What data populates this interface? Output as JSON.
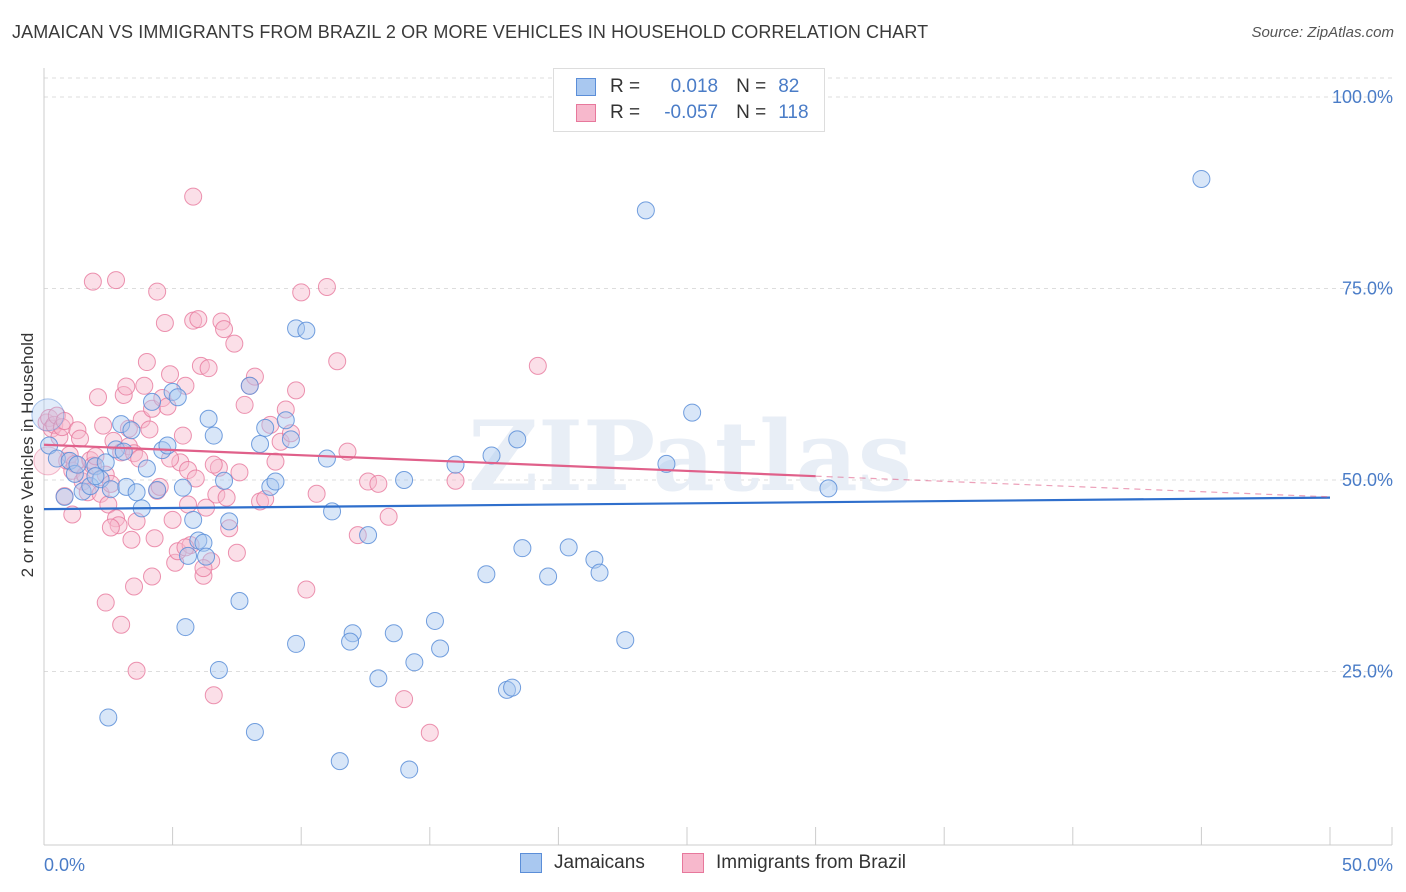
{
  "title": "JAMAICAN VS IMMIGRANTS FROM BRAZIL 2 OR MORE VEHICLES IN HOUSEHOLD CORRELATION CHART",
  "source": "Source: ZipAtlas.com",
  "watermark": "ZIPatlas",
  "legend": {
    "rows": [
      {
        "r_label": "R =",
        "r_value": "0.018",
        "n_label": "N =",
        "n_value": "82"
      },
      {
        "r_label": "R =",
        "r_value": "-0.057",
        "n_label": "N =",
        "n_value": "118"
      }
    ]
  },
  "bottom_legend": {
    "series_a": "Jamaicans",
    "series_b": "Immigrants from Brazil"
  },
  "colors": {
    "blue_fill": "#a9c8f0",
    "blue_stroke": "#5b8ed8",
    "blue_line": "#2f6fcc",
    "pink_fill": "#f7b8cc",
    "pink_stroke": "#e7789c",
    "pink_line": "#e0608a",
    "tick_text": "#4a7cc7",
    "grid": "#dddddd"
  },
  "chart_data": {
    "type": "scatter",
    "title": "JAMAICAN VS IMMIGRANTS FROM BRAZIL 2 OR MORE VEHICLES IN HOUSEHOLD CORRELATION CHART",
    "xlabel": "",
    "ylabel": "2 or more Vehicles in Household",
    "xlim": [
      0,
      50
    ],
    "ylim": [
      0,
      105
    ],
    "x_tick_labels": [
      {
        "value": 0,
        "label": "0.0%"
      },
      {
        "value": 50,
        "label": "50.0%"
      }
    ],
    "y_tick_labels": [
      {
        "value": 25,
        "label": "25.0%"
      },
      {
        "value": 50,
        "label": "50.0%"
      },
      {
        "value": 75,
        "label": "75.0%"
      },
      {
        "value": 100,
        "label": "100.0%"
      }
    ],
    "grid": "horizontal dashed",
    "series": [
      {
        "name": "Jamaicans",
        "r": 0.018,
        "n": 82,
        "trend": {
          "x": [
            0,
            50
          ],
          "y": [
            46.2,
            47.7
          ]
        },
        "points": [
          [
            0.2,
            54.5
          ],
          [
            0.5,
            52.8
          ],
          [
            0.8,
            47.8
          ],
          [
            1.0,
            52.5
          ],
          [
            1.2,
            50.8
          ],
          [
            1.5,
            48.5
          ],
          [
            1.8,
            49.2
          ],
          [
            2.0,
            51.8
          ],
          [
            2.2,
            50.1
          ],
          [
            2.4,
            52.3
          ],
          [
            2.6,
            48.8
          ],
          [
            2.8,
            54.0
          ],
          [
            3.0,
            57.3
          ],
          [
            3.2,
            49.1
          ],
          [
            3.4,
            56.5
          ],
          [
            3.6,
            48.4
          ],
          [
            3.8,
            46.3
          ],
          [
            4.0,
            51.5
          ],
          [
            4.2,
            60.2
          ],
          [
            4.4,
            48.7
          ],
          [
            4.6,
            53.9
          ],
          [
            4.8,
            54.5
          ],
          [
            5.0,
            61.5
          ],
          [
            5.2,
            60.8
          ],
          [
            5.4,
            49.0
          ],
          [
            5.6,
            40.1
          ],
          [
            5.8,
            44.8
          ],
          [
            6.0,
            42.1
          ],
          [
            6.2,
            41.8
          ],
          [
            6.4,
            58.0
          ],
          [
            6.6,
            55.8
          ],
          [
            7.0,
            49.9
          ],
          [
            7.2,
            44.6
          ],
          [
            7.6,
            34.2
          ],
          [
            8.0,
            62.3
          ],
          [
            8.4,
            54.7
          ],
          [
            8.6,
            56.8
          ],
          [
            8.8,
            49.1
          ],
          [
            9.0,
            49.8
          ],
          [
            9.4,
            57.8
          ],
          [
            9.6,
            55.3
          ],
          [
            9.8,
            69.8
          ],
          [
            10.2,
            69.5
          ],
          [
            11.0,
            52.8
          ],
          [
            11.2,
            45.9
          ],
          [
            12.0,
            30.0
          ],
          [
            12.6,
            42.8
          ],
          [
            13.0,
            24.1
          ],
          [
            13.6,
            30.0
          ],
          [
            14.0,
            50.0
          ],
          [
            14.4,
            26.2
          ],
          [
            15.2,
            31.6
          ],
          [
            15.4,
            28.0
          ],
          [
            16.0,
            52.0
          ],
          [
            17.2,
            37.7
          ],
          [
            17.4,
            53.2
          ],
          [
            18.0,
            22.6
          ],
          [
            18.2,
            22.9
          ],
          [
            18.4,
            55.3
          ],
          [
            18.6,
            41.1
          ],
          [
            19.6,
            37.4
          ],
          [
            20.4,
            41.2
          ],
          [
            21.4,
            39.6
          ],
          [
            21.6,
            37.9
          ],
          [
            22.6,
            29.1
          ],
          [
            23.4,
            85.2
          ],
          [
            24.2,
            52.1
          ],
          [
            25.2,
            58.8
          ],
          [
            30.5,
            48.9
          ],
          [
            45.0,
            89.3
          ],
          [
            2.5,
            19.0
          ],
          [
            8.2,
            17.1
          ],
          [
            11.5,
            13.3
          ],
          [
            14.2,
            12.2
          ],
          [
            6.8,
            25.2
          ],
          [
            5.5,
            30.8
          ],
          [
            9.8,
            28.6
          ],
          [
            11.9,
            28.9
          ],
          [
            3.1,
            53.7
          ],
          [
            2.0,
            50.5
          ],
          [
            6.3,
            40.0
          ],
          [
            1.3,
            52.0
          ]
        ]
      },
      {
        "name": "Immigrants from Brazil",
        "r": -0.057,
        "n": 118,
        "trend": {
          "x": [
            0,
            30
          ],
          "y": [
            54.6,
            50.5
          ]
        },
        "trend_dashed": {
          "x": [
            30,
            50
          ],
          "y": [
            50.5,
            47.8
          ]
        },
        "points": [
          [
            0.1,
            57.5
          ],
          [
            0.2,
            58.1
          ],
          [
            0.3,
            56.7
          ],
          [
            0.4,
            57.2
          ],
          [
            0.5,
            58.4
          ],
          [
            0.6,
            55.6
          ],
          [
            0.7,
            56.9
          ],
          [
            0.8,
            57.7
          ],
          [
            0.9,
            52.5
          ],
          [
            1.0,
            53.3
          ],
          [
            1.1,
            51.2
          ],
          [
            1.2,
            52.1
          ],
          [
            1.3,
            56.5
          ],
          [
            1.4,
            55.4
          ],
          [
            1.5,
            49.8
          ],
          [
            1.6,
            50.6
          ],
          [
            1.7,
            48.4
          ],
          [
            1.8,
            52.6
          ],
          [
            1.9,
            51.9
          ],
          [
            2.0,
            53.1
          ],
          [
            2.1,
            60.8
          ],
          [
            2.2,
            48.2
          ],
          [
            2.3,
            57.1
          ],
          [
            2.4,
            50.7
          ],
          [
            2.5,
            46.8
          ],
          [
            2.6,
            49.5
          ],
          [
            2.7,
            55.1
          ],
          [
            2.8,
            45.0
          ],
          [
            2.9,
            44.1
          ],
          [
            3.0,
            53.6
          ],
          [
            3.1,
            61.1
          ],
          [
            3.2,
            62.2
          ],
          [
            3.3,
            54.4
          ],
          [
            3.4,
            42.2
          ],
          [
            3.5,
            53.5
          ],
          [
            3.6,
            44.6
          ],
          [
            3.7,
            52.8
          ],
          [
            3.8,
            57.9
          ],
          [
            3.9,
            62.3
          ],
          [
            4.0,
            65.4
          ],
          [
            4.1,
            56.6
          ],
          [
            4.2,
            59.3
          ],
          [
            4.3,
            42.4
          ],
          [
            4.4,
            48.6
          ],
          [
            4.5,
            49.1
          ],
          [
            4.6,
            60.7
          ],
          [
            4.7,
            70.5
          ],
          [
            4.8,
            59.6
          ],
          [
            4.9,
            63.8
          ],
          [
            5.0,
            44.8
          ],
          [
            5.1,
            39.2
          ],
          [
            5.2,
            40.7
          ],
          [
            5.3,
            52.3
          ],
          [
            5.4,
            55.8
          ],
          [
            5.5,
            62.3
          ],
          [
            5.6,
            51.3
          ],
          [
            5.7,
            41.5
          ],
          [
            5.8,
            70.8
          ],
          [
            5.9,
            50.2
          ],
          [
            6.0,
            71.0
          ],
          [
            6.1,
            64.9
          ],
          [
            6.2,
            37.5
          ],
          [
            6.3,
            46.4
          ],
          [
            6.4,
            64.6
          ],
          [
            6.5,
            39.4
          ],
          [
            6.6,
            21.9
          ],
          [
            6.7,
            48.1
          ],
          [
            6.8,
            51.6
          ],
          [
            6.9,
            70.7
          ],
          [
            7.0,
            69.7
          ],
          [
            7.1,
            47.7
          ],
          [
            7.2,
            43.7
          ],
          [
            7.4,
            67.8
          ],
          [
            7.6,
            51.0
          ],
          [
            7.8,
            59.8
          ],
          [
            8.0,
            62.3
          ],
          [
            8.2,
            63.5
          ],
          [
            8.4,
            47.2
          ],
          [
            8.6,
            47.5
          ],
          [
            8.8,
            57.2
          ],
          [
            9.0,
            52.4
          ],
          [
            9.2,
            55.0
          ],
          [
            9.4,
            59.2
          ],
          [
            9.6,
            56.1
          ],
          [
            9.8,
            61.7
          ],
          [
            10.0,
            74.5
          ],
          [
            10.2,
            35.7
          ],
          [
            10.6,
            48.2
          ],
          [
            11.0,
            75.2
          ],
          [
            11.4,
            65.5
          ],
          [
            11.8,
            53.7
          ],
          [
            12.2,
            42.8
          ],
          [
            12.6,
            49.8
          ],
          [
            13.0,
            49.5
          ],
          [
            13.4,
            45.2
          ],
          [
            14.0,
            21.4
          ],
          [
            15.0,
            17.0
          ],
          [
            16.0,
            49.9
          ],
          [
            19.2,
            64.9
          ],
          [
            2.4,
            34.0
          ],
          [
            3.0,
            31.1
          ],
          [
            3.5,
            36.1
          ],
          [
            3.6,
            25.1
          ],
          [
            4.2,
            37.4
          ],
          [
            5.5,
            41.2
          ],
          [
            6.2,
            38.5
          ],
          [
            7.5,
            40.5
          ],
          [
            1.9,
            75.9
          ],
          [
            4.4,
            74.6
          ],
          [
            5.8,
            87.0
          ],
          [
            2.8,
            76.1
          ],
          [
            1.1,
            45.5
          ],
          [
            0.8,
            47.9
          ],
          [
            2.6,
            43.8
          ],
          [
            3.3,
            56.7
          ],
          [
            4.9,
            52.8
          ],
          [
            5.6,
            46.8
          ],
          [
            6.6,
            52.0
          ]
        ]
      }
    ]
  }
}
